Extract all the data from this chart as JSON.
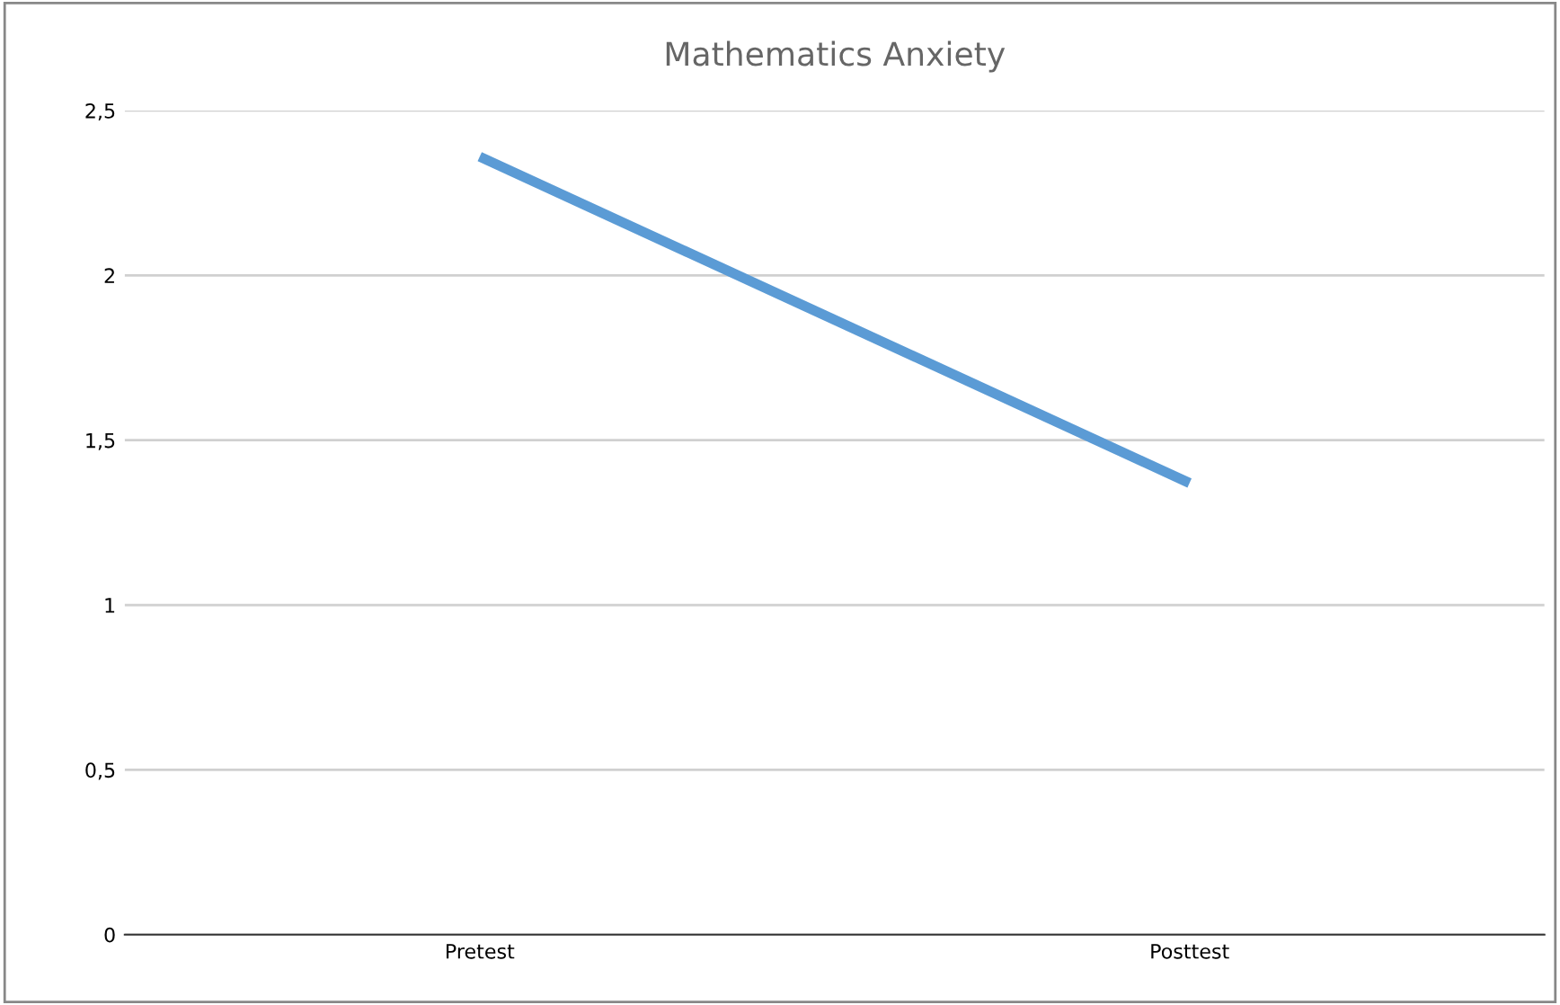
{
  "chart_data": {
    "type": "line",
    "title": "Mathematics Anxiety",
    "categories": [
      "Pretest",
      "Posttest"
    ],
    "series": [
      {
        "color": "#5b9bd5",
        "values": [
          2.36,
          1.37
        ]
      }
    ],
    "ylim": [
      0,
      2.5
    ],
    "yticks": [
      0,
      {
        "value": 0.5,
        "label": "0,5"
      },
      1,
      {
        "value": 1.5,
        "label": "1,5"
      },
      2,
      {
        "value": 2.5,
        "label": "2,5"
      }
    ],
    "grid": "y",
    "marker": "none",
    "line_style": "solid"
  }
}
